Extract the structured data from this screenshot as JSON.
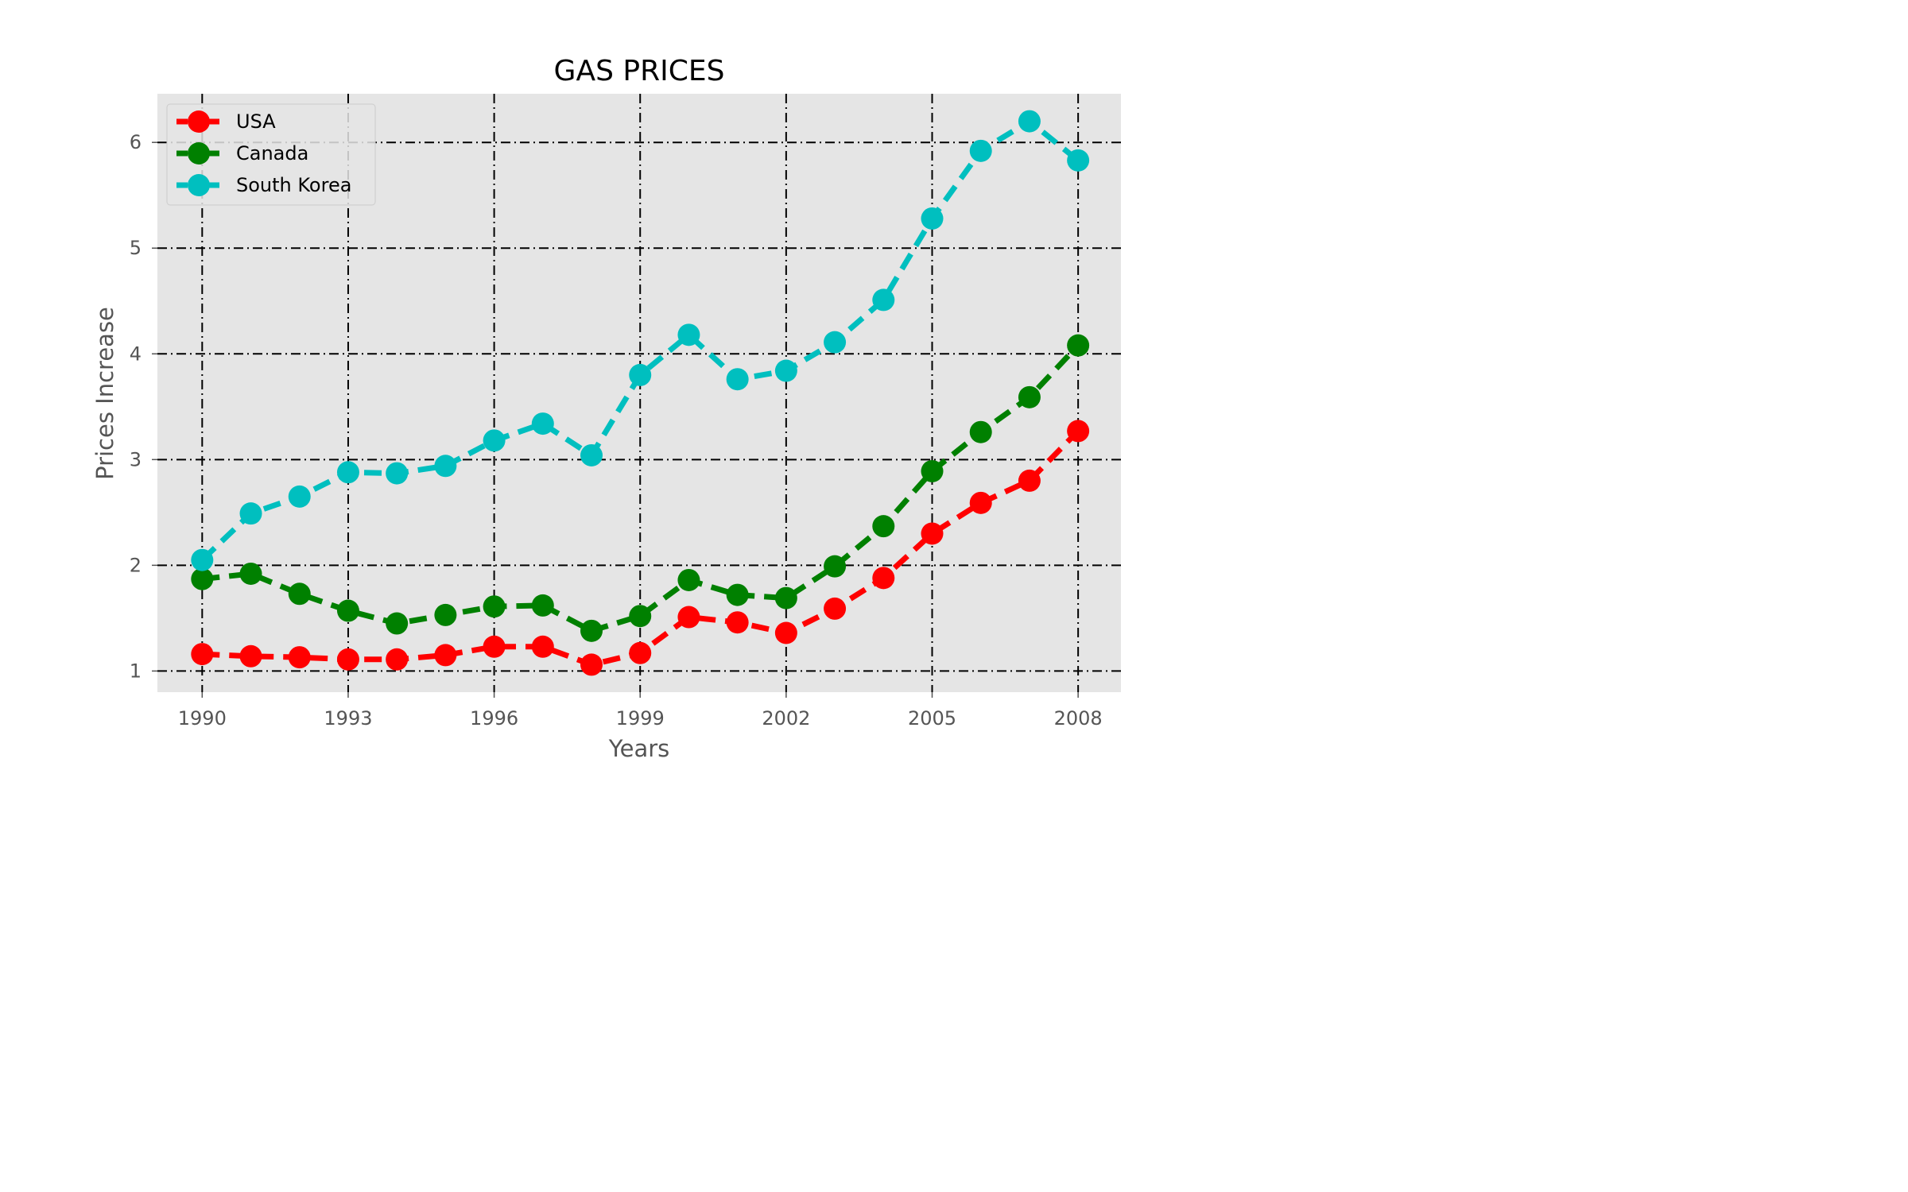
{
  "chart_data": {
    "type": "line",
    "title": "GAS PRICES",
    "xlabel": "Years",
    "ylabel": "Prices Increase",
    "x": [
      1990,
      1991,
      1992,
      1993,
      1994,
      1995,
      1996,
      1997,
      1998,
      1999,
      2000,
      2001,
      2002,
      2003,
      2004,
      2005,
      2006,
      2007,
      2008
    ],
    "xticks": [
      1990,
      1993,
      1996,
      1999,
      2002,
      2005,
      2008
    ],
    "yticks": [
      1,
      2,
      3,
      4,
      5,
      6
    ],
    "xlim": [
      1989.08,
      2008.88
    ],
    "ylim": [
      0.8,
      6.46
    ],
    "grid": true,
    "legend_position": "top-left",
    "series": [
      {
        "name": "USA",
        "color": "#ff0000",
        "values": [
          1.16,
          1.14,
          1.13,
          1.11,
          1.11,
          1.15,
          1.23,
          1.23,
          1.06,
          1.17,
          1.51,
          1.46,
          1.36,
          1.59,
          1.88,
          2.3,
          2.59,
          2.8,
          3.27
        ]
      },
      {
        "name": "Canada",
        "color": "#008000",
        "values": [
          1.87,
          1.92,
          1.73,
          1.57,
          1.45,
          1.53,
          1.61,
          1.62,
          1.38,
          1.52,
          1.86,
          1.72,
          1.69,
          1.99,
          2.37,
          2.89,
          3.26,
          3.59,
          4.08
        ]
      },
      {
        "name": "South Korea",
        "color": "#00bfbf",
        "values": [
          2.05,
          2.49,
          2.65,
          2.88,
          2.87,
          2.94,
          3.18,
          3.34,
          3.04,
          3.8,
          4.18,
          3.76,
          3.84,
          4.11,
          4.51,
          5.28,
          5.92,
          6.2,
          5.83
        ]
      }
    ]
  }
}
